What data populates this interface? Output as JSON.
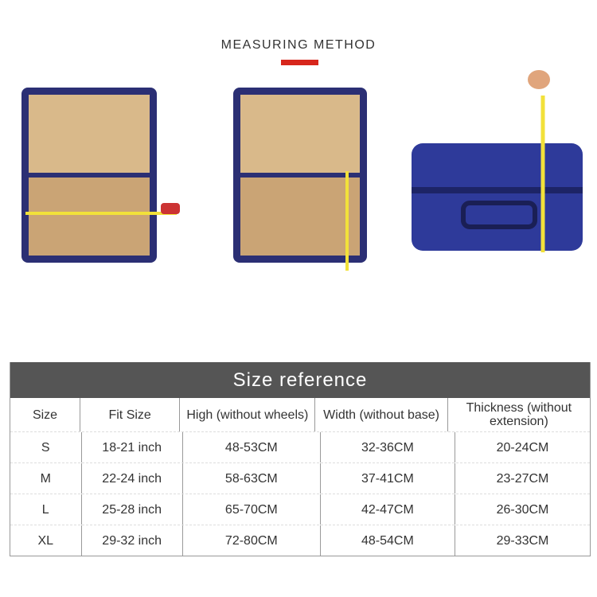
{
  "heading": "MEASURING METHOD",
  "accent": "#d7261c",
  "table": {
    "title": "Size reference",
    "headers": [
      "Size",
      "Fit Size",
      "High (without wheels)",
      "Width (without base)",
      "Thickness (without extension)"
    ],
    "rows": [
      [
        "S",
        "18-21 inch",
        "48-53CM",
        "32-36CM",
        "20-24CM"
      ],
      [
        "M",
        "22-24 inch",
        "58-63CM",
        "37-41CM",
        "23-27CM"
      ],
      [
        "L",
        "25-28 inch",
        "65-70CM",
        "42-47CM",
        "26-30CM"
      ],
      [
        "XL",
        "29-32 inch",
        "72-80CM",
        "48-54CM",
        "29-33CM"
      ]
    ]
  }
}
